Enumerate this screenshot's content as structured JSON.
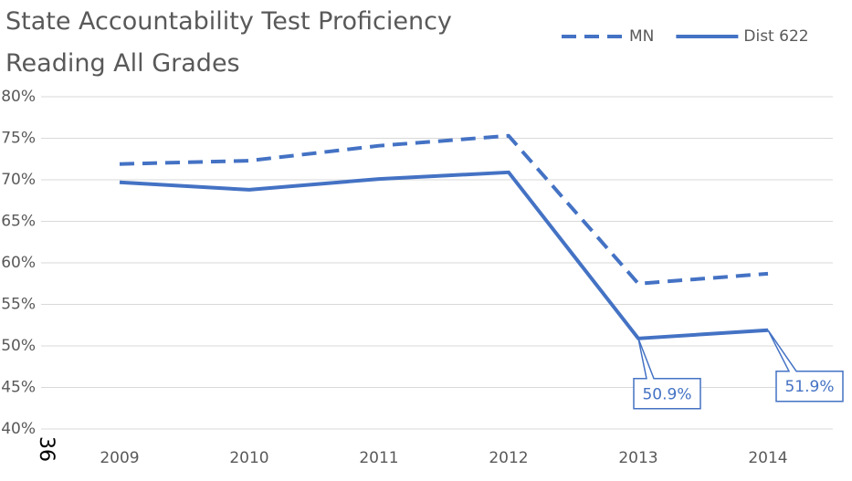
{
  "page_number": "36",
  "chart_data": {
    "type": "line",
    "title": "State Accountability Test Proficiency",
    "subtitle": "Reading All Grades",
    "categories": [
      "2009",
      "2010",
      "2011",
      "2012",
      "2013",
      "2014"
    ],
    "series": [
      {
        "name": "MN",
        "color": "#4472c4",
        "dash": "dashed",
        "values": [
          71.9,
          72.3,
          74.1,
          75.3,
          57.5,
          58.7
        ]
      },
      {
        "name": "Dist 622",
        "color": "#4472c4",
        "dash": "solid",
        "values": [
          69.7,
          68.8,
          70.1,
          70.9,
          50.9,
          51.9
        ],
        "value_labels": [
          null,
          null,
          null,
          null,
          "50.9%",
          "51.9%"
        ]
      }
    ],
    "ylim": [
      40,
      80
    ],
    "yticks": [
      {
        "value": 40,
        "label": "40%"
      },
      {
        "value": 45,
        "label": "45%"
      },
      {
        "value": 50,
        "label": "50%"
      },
      {
        "value": 55,
        "label": "55%"
      },
      {
        "value": 60,
        "label": "60%"
      },
      {
        "value": 65,
        "label": "65%"
      },
      {
        "value": 70,
        "label": "70%"
      },
      {
        "value": 75,
        "label": "75%"
      },
      {
        "value": 80,
        "label": "80%"
      }
    ],
    "grid": true,
    "legend": "top-right"
  }
}
